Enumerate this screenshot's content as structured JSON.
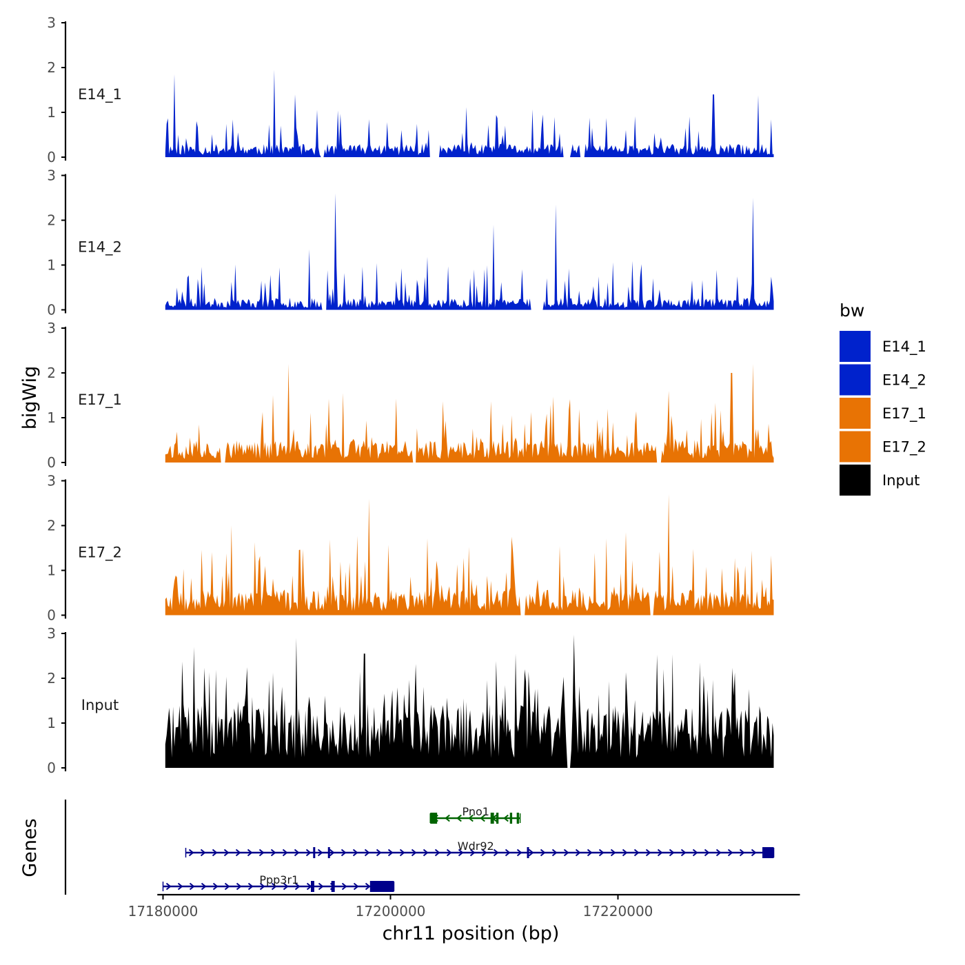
{
  "chart_data": {
    "type": "area",
    "title": "",
    "xlabel": "chr11 position (bp)",
    "ylabel": "bigWig",
    "genes_label": "Genes",
    "xlim": [
      17179500,
      17236000
    ],
    "x_ticks": [
      17180000,
      17200000,
      17220000
    ],
    "x_tick_labels": [
      "17180000",
      "17200000",
      "17220000"
    ],
    "region": [
      17180200,
      17233700
    ],
    "ylim": [
      0,
      3
    ],
    "y_ticks": [
      0,
      1,
      2,
      3
    ],
    "y_tick_labels": [
      "0",
      "1",
      "2",
      "3"
    ],
    "legend": {
      "title": "bw",
      "position": "right",
      "entries": [
        {
          "label": "E14_1",
          "color": "#0022CC"
        },
        {
          "label": "E14_2",
          "color": "#0022CC"
        },
        {
          "label": "E17_1",
          "color": "#E87304"
        },
        {
          "label": "E17_2",
          "color": "#E87304"
        },
        {
          "label": "Input",
          "color": "#000000"
        }
      ]
    },
    "series": [
      {
        "name": "E14_1",
        "color": "#0022CC",
        "seed": 11,
        "base": 0.18,
        "spike_prob": 0.14,
        "spike_max": 0.85,
        "peaks": [
          [
            17181000,
            1.85
          ],
          [
            17189800,
            1.95
          ],
          [
            17191600,
            1.4
          ],
          [
            17228400,
            1.4
          ],
          [
            17232300,
            1.38
          ]
        ],
        "gaps": [
          [
            17193800,
            17194200
          ],
          [
            17203400,
            17204300
          ],
          [
            17215200,
            17215800
          ],
          [
            17216700,
            17217100
          ]
        ]
      },
      {
        "name": "E14_2",
        "color": "#0022CC",
        "seed": 23,
        "base": 0.16,
        "spike_prob": 0.13,
        "spike_max": 0.95,
        "peaks": [
          [
            17195100,
            2.6
          ],
          [
            17209100,
            1.9
          ],
          [
            17214500,
            2.35
          ],
          [
            17231900,
            2.5
          ],
          [
            17192900,
            1.35
          ]
        ],
        "gaps": [
          [
            17194000,
            17194400
          ],
          [
            17212300,
            17213500
          ]
        ]
      },
      {
        "name": "E17_1",
        "color": "#E87304",
        "seed": 37,
        "base": 0.3,
        "spike_prob": 0.16,
        "spike_max": 1.15,
        "peaks": [
          [
            17191000,
            2.2
          ],
          [
            17195800,
            1.55
          ],
          [
            17224500,
            1.6
          ],
          [
            17230000,
            2.0
          ],
          [
            17231900,
            2.2
          ]
        ],
        "gaps": [
          [
            17185100,
            17185500
          ],
          [
            17201900,
            17202300
          ],
          [
            17223400,
            17223800
          ]
        ]
      },
      {
        "name": "E17_2",
        "color": "#E87304",
        "seed": 53,
        "base": 0.35,
        "spike_prob": 0.18,
        "spike_max": 1.3,
        "peaks": [
          [
            17198100,
            2.6
          ],
          [
            17224500,
            2.7
          ],
          [
            17210700,
            1.75
          ],
          [
            17186000,
            2.0
          ]
        ],
        "gaps": [
          [
            17211400,
            17211900
          ],
          [
            17222800,
            17223100
          ]
        ]
      },
      {
        "name": "Input",
        "color": "#000000",
        "seed": 71,
        "base": 0.85,
        "spike_prob": 0.22,
        "spike_max": 1.6,
        "peaks": [
          [
            17182700,
            2.7
          ],
          [
            17191700,
            2.9
          ],
          [
            17197700,
            2.55
          ],
          [
            17211000,
            2.55
          ],
          [
            17224000,
            2.2
          ]
        ],
        "gaps": [
          [
            17215500,
            17215900
          ]
        ]
      }
    ],
    "genes": [
      {
        "name": "Pno1",
        "strand": "-",
        "color": "#006400",
        "row": 0,
        "start": 17203500,
        "end": 17211400,
        "label_x": 17207500,
        "exons": [
          [
            17203500,
            17204100
          ],
          [
            17208800,
            17209100
          ],
          [
            17209300,
            17209500
          ],
          [
            17210500,
            17210700
          ],
          [
            17211100,
            17211300
          ]
        ]
      },
      {
        "name": "Wdr92",
        "strand": "+",
        "color": "#00008B",
        "row": 1,
        "start": 17182000,
        "end": 17233700,
        "label_x": 17207500,
        "exons": [
          [
            17193200,
            17193300
          ],
          [
            17194500,
            17194600
          ],
          [
            17212000,
            17212100
          ],
          [
            17232700,
            17233700
          ]
        ]
      },
      {
        "name": "Ppp3r1",
        "strand": "+",
        "color": "#00008B",
        "row": 2,
        "start": 17180000,
        "end": 17200300,
        "label_x": 17190200,
        "exons": [
          [
            17193000,
            17193300
          ],
          [
            17194800,
            17195100
          ],
          [
            17198200,
            17200300
          ]
        ]
      }
    ]
  }
}
